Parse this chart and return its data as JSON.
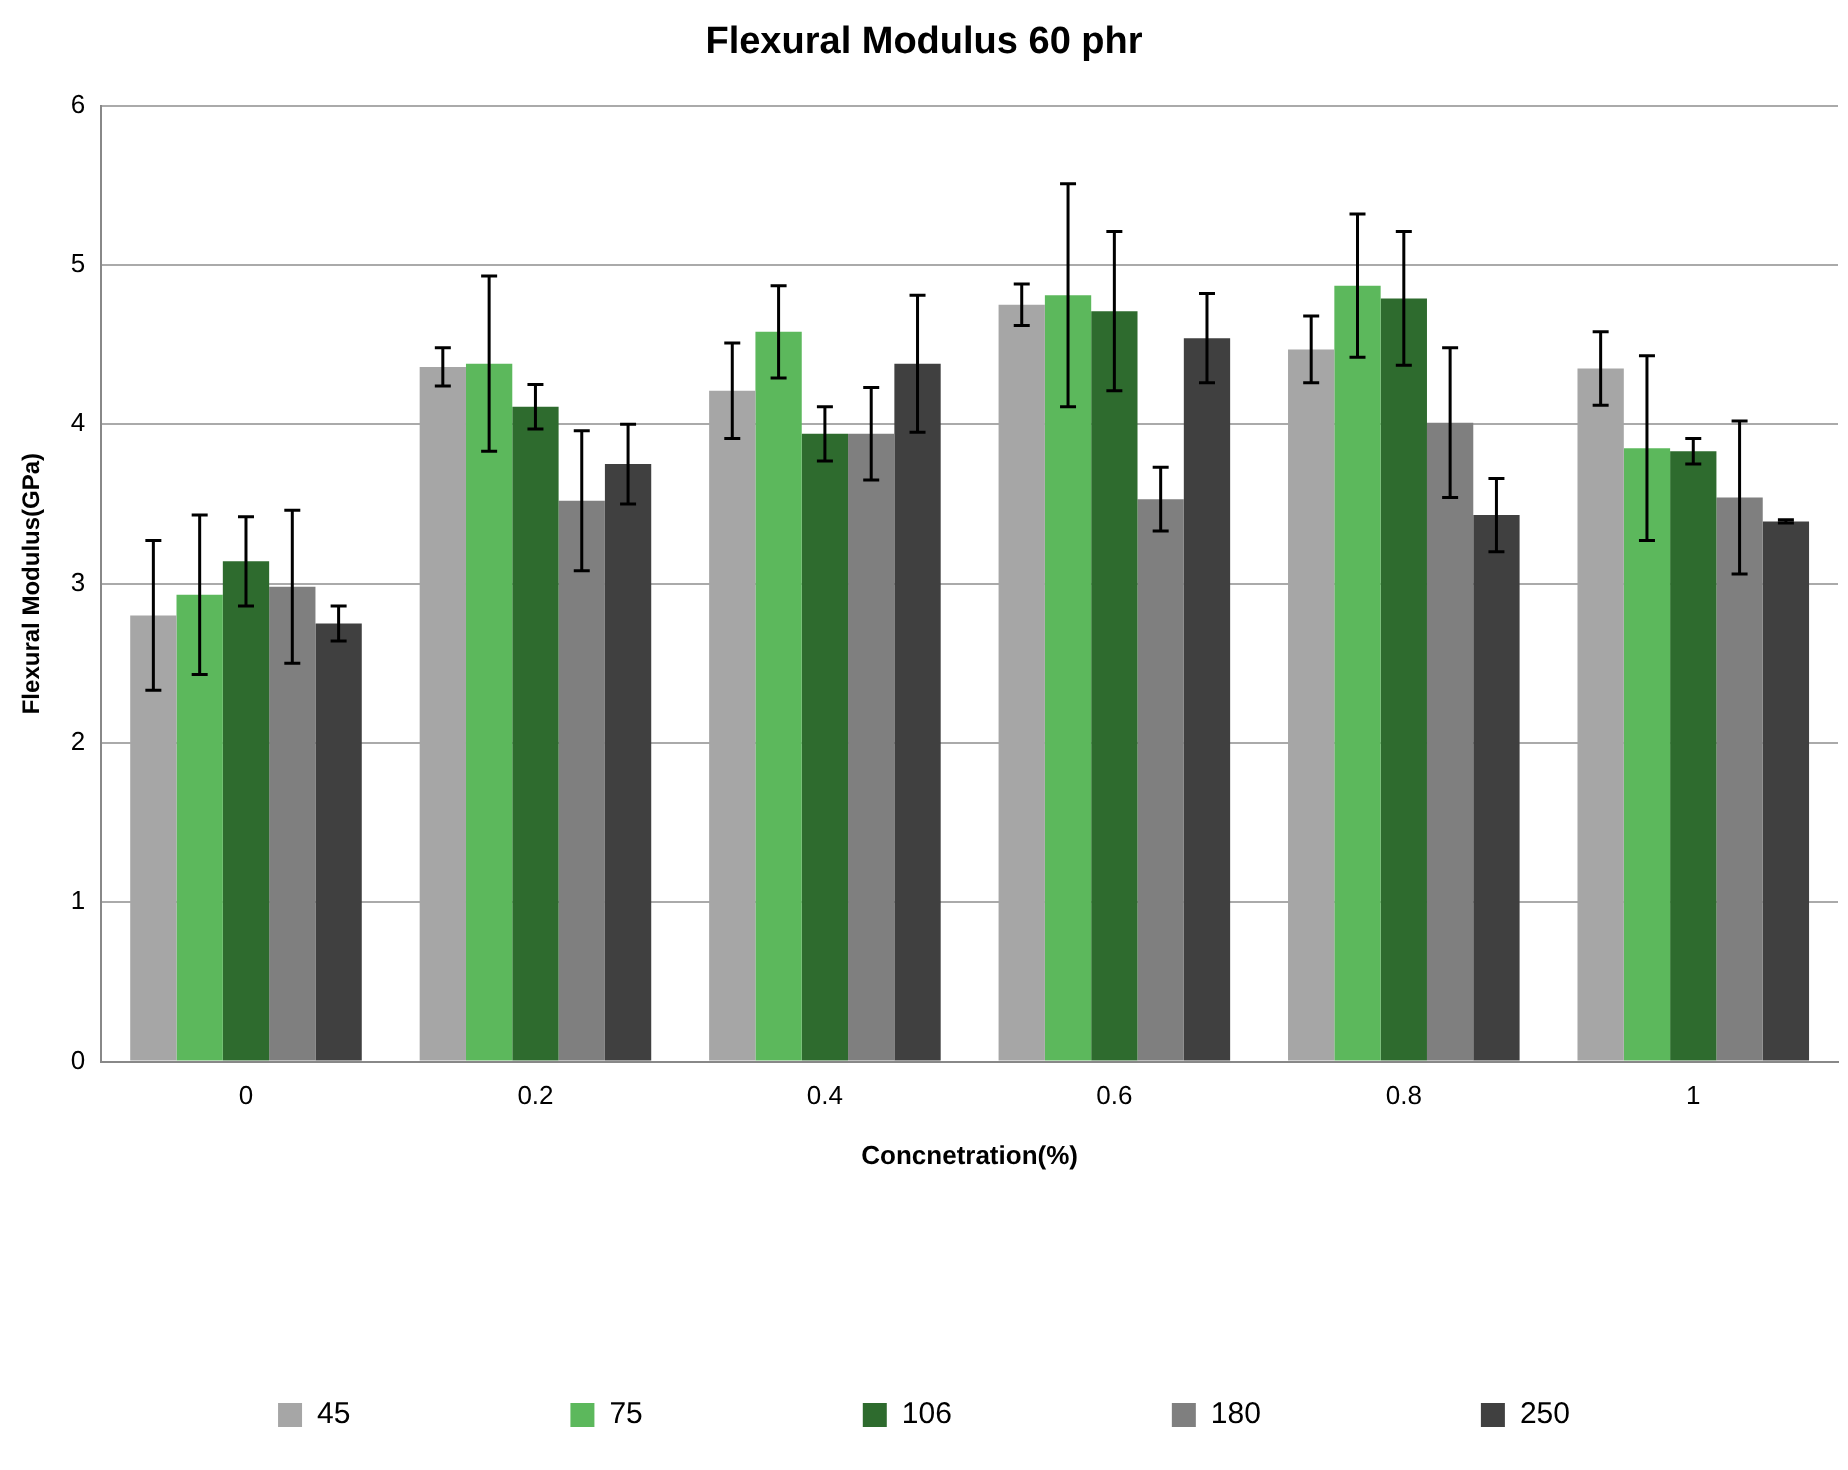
{
  "chart_data": {
    "type": "bar",
    "title": "Flexural Modulus 60 phr",
    "xlabel": "Concnetration(%)",
    "ylabel": "Flexural Modulus(GPa)",
    "categories": [
      "0",
      "0.2",
      "0.4",
      "0.6",
      "0.8",
      "1"
    ],
    "series": [
      {
        "name": "45",
        "color": "#a6a6a6",
        "values": [
          2.8,
          4.36,
          4.21,
          4.75,
          4.47,
          4.35
        ],
        "errors": [
          0.47,
          0.12,
          0.3,
          0.13,
          0.21,
          0.23
        ]
      },
      {
        "name": "75",
        "color": "#5cb85c",
        "values": [
          2.93,
          4.38,
          4.58,
          4.81,
          4.87,
          3.85
        ],
        "errors": [
          0.5,
          0.55,
          0.29,
          0.7,
          0.45,
          0.58
        ]
      },
      {
        "name": "106",
        "color": "#2e6b2e",
        "values": [
          3.14,
          4.11,
          3.94,
          4.71,
          4.79,
          3.83
        ],
        "errors": [
          0.28,
          0.14,
          0.17,
          0.5,
          0.42,
          0.08
        ]
      },
      {
        "name": "180",
        "color": "#7f7f7f",
        "values": [
          2.98,
          3.52,
          3.94,
          3.53,
          4.01,
          3.54
        ],
        "errors": [
          0.48,
          0.44,
          0.29,
          0.2,
          0.47,
          0.48
        ]
      },
      {
        "name": "250",
        "color": "#404040",
        "values": [
          2.75,
          3.75,
          4.38,
          4.54,
          3.43,
          3.39
        ],
        "errors": [
          0.11,
          0.25,
          0.43,
          0.28,
          0.23,
          0.01
        ]
      }
    ],
    "ylim": [
      0,
      6
    ],
    "yticks": [
      0,
      1,
      2,
      3,
      4,
      5,
      6
    ],
    "grid": "y",
    "legend": "bottom"
  }
}
